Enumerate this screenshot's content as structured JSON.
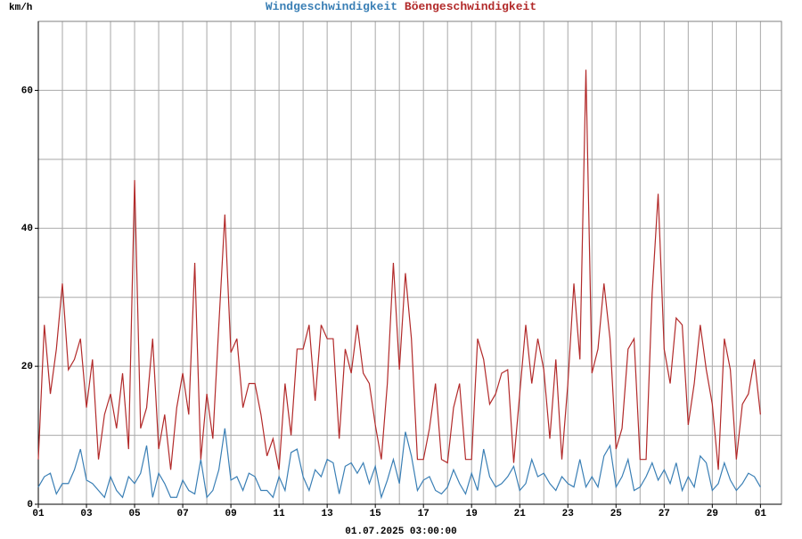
{
  "chart_data": {
    "type": "line",
    "y_unit": "km/h",
    "caption": "01.07.2025 03:00:00",
    "x": [
      "2025-06-01T00:00",
      "2025-06-01T06:00",
      "2025-06-01T12:00",
      "2025-06-01T18:00",
      "2025-06-02T00:00",
      "2025-06-02T06:00",
      "2025-06-02T12:00",
      "2025-06-02T18:00",
      "2025-06-03T00:00",
      "2025-06-03T06:00",
      "2025-06-03T12:00",
      "2025-06-03T18:00",
      "2025-06-04T00:00",
      "2025-06-04T06:00",
      "2025-06-04T12:00",
      "2025-06-04T18:00",
      "2025-06-05T00:00",
      "2025-06-05T06:00",
      "2025-06-05T12:00",
      "2025-06-05T18:00",
      "2025-06-06T00:00",
      "2025-06-06T06:00",
      "2025-06-06T12:00",
      "2025-06-06T18:00",
      "2025-06-07T00:00",
      "2025-06-07T06:00",
      "2025-06-07T12:00",
      "2025-06-07T18:00",
      "2025-06-08T00:00",
      "2025-06-08T06:00",
      "2025-06-08T12:00",
      "2025-06-08T18:00",
      "2025-06-09T00:00",
      "2025-06-09T06:00",
      "2025-06-09T12:00",
      "2025-06-09T18:00",
      "2025-06-10T00:00",
      "2025-06-10T06:00",
      "2025-06-10T12:00",
      "2025-06-10T18:00",
      "2025-06-11T00:00",
      "2025-06-11T06:00",
      "2025-06-11T12:00",
      "2025-06-11T18:00",
      "2025-06-12T00:00",
      "2025-06-12T06:00",
      "2025-06-12T12:00",
      "2025-06-12T18:00",
      "2025-06-13T00:00",
      "2025-06-13T06:00",
      "2025-06-13T12:00",
      "2025-06-13T18:00",
      "2025-06-14T00:00",
      "2025-06-14T06:00",
      "2025-06-14T12:00",
      "2025-06-14T18:00",
      "2025-06-15T00:00",
      "2025-06-15T06:00",
      "2025-06-15T12:00",
      "2025-06-15T18:00",
      "2025-06-16T00:00",
      "2025-06-16T06:00",
      "2025-06-16T12:00",
      "2025-06-16T18:00",
      "2025-06-17T00:00",
      "2025-06-17T06:00",
      "2025-06-17T12:00",
      "2025-06-17T18:00",
      "2025-06-18T00:00",
      "2025-06-18T06:00",
      "2025-06-18T12:00",
      "2025-06-18T18:00",
      "2025-06-19T00:00",
      "2025-06-19T06:00",
      "2025-06-19T12:00",
      "2025-06-19T18:00",
      "2025-06-20T00:00",
      "2025-06-20T06:00",
      "2025-06-20T12:00",
      "2025-06-20T18:00",
      "2025-06-21T00:00",
      "2025-06-21T06:00",
      "2025-06-21T12:00",
      "2025-06-21T18:00",
      "2025-06-22T00:00",
      "2025-06-22T06:00",
      "2025-06-22T12:00",
      "2025-06-22T18:00",
      "2025-06-23T00:00",
      "2025-06-23T06:00",
      "2025-06-23T12:00",
      "2025-06-23T18:00",
      "2025-06-24T00:00",
      "2025-06-24T06:00",
      "2025-06-24T12:00",
      "2025-06-24T18:00",
      "2025-06-25T00:00",
      "2025-06-25T06:00",
      "2025-06-25T12:00",
      "2025-06-25T18:00",
      "2025-06-26T00:00",
      "2025-06-26T06:00",
      "2025-06-26T12:00",
      "2025-06-26T18:00",
      "2025-06-27T00:00",
      "2025-06-27T06:00",
      "2025-06-27T12:00",
      "2025-06-27T18:00",
      "2025-06-28T00:00",
      "2025-06-28T06:00",
      "2025-06-28T12:00",
      "2025-06-28T18:00",
      "2025-06-29T00:00",
      "2025-06-29T06:00",
      "2025-06-29T12:00",
      "2025-06-29T18:00",
      "2025-06-30T00:00",
      "2025-06-30T06:00",
      "2025-06-30T12:00",
      "2025-06-30T18:00",
      "2025-07-01T00:00"
    ],
    "series": [
      {
        "name": "Windgeschwindigkeit",
        "color": "#3a7fb5",
        "values": [
          2.5,
          4,
          4.5,
          1.5,
          3,
          3,
          5,
          8,
          3.5,
          3,
          2,
          1,
          4,
          2,
          1,
          4,
          3,
          4.5,
          8.5,
          1,
          4.5,
          3,
          1,
          1,
          3.5,
          2,
          1.5,
          6.5,
          1,
          2,
          5,
          11,
          3.5,
          4,
          2,
          4.5,
          4,
          2,
          2,
          1,
          4,
          2,
          7.5,
          8,
          4,
          2,
          5,
          4,
          6.5,
          6,
          1.5,
          5.5,
          6,
          4.5,
          6,
          3,
          5.5,
          1,
          3.5,
          6.5,
          3,
          10.5,
          7,
          2,
          3.5,
          4,
          2,
          1.5,
          2.5,
          5,
          3,
          1.5,
          4.5,
          2,
          8,
          4,
          2.5,
          3,
          4,
          5.5,
          2,
          3,
          6.5,
          4,
          4.5,
          3,
          2,
          4,
          3,
          2.5,
          6.5,
          2.5,
          4,
          2.5,
          7,
          8.5,
          2.5,
          4,
          6.5,
          2,
          2.5,
          4,
          6,
          3.5,
          5,
          3,
          6,
          2,
          4,
          2.5,
          7,
          6,
          2,
          3,
          6,
          3.5,
          2,
          3,
          4.5,
          4,
          2.5
        ]
      },
      {
        "name": "Böengeschwindigkeit",
        "color": "#b22a2a",
        "values": [
          6.5,
          26,
          16,
          22.5,
          32,
          19.5,
          21,
          24,
          14,
          21,
          6.5,
          13,
          16,
          11,
          19,
          8,
          47,
          11,
          14,
          24,
          8,
          13,
          5,
          14,
          19,
          13,
          35,
          6.5,
          16,
          9.5,
          26,
          42,
          22,
          24,
          14,
          17.5,
          17.5,
          13,
          7,
          9.5,
          5,
          17.5,
          10,
          22.5,
          22.5,
          26,
          15,
          26,
          24,
          24,
          9.5,
          22.5,
          19,
          26,
          19,
          17.5,
          11.5,
          6.5,
          17.5,
          35,
          19.5,
          33.5,
          24,
          6.5,
          6.5,
          11,
          17.5,
          6.5,
          6,
          14,
          17.5,
          6.5,
          6.5,
          24,
          21,
          14.5,
          16,
          19,
          19.5,
          6,
          16,
          26,
          17.5,
          24,
          19.5,
          9.5,
          21,
          6.5,
          17.5,
          32,
          21,
          63,
          19,
          22.5,
          32,
          24,
          8,
          11,
          22.5,
          24,
          6.5,
          6.5,
          30.5,
          45,
          22.5,
          17.5,
          27,
          26,
          11.5,
          17.5,
          26,
          19.5,
          14.5,
          5,
          24,
          19.5,
          6.5,
          14.5,
          16,
          21,
          13
        ]
      }
    ],
    "xlim": [
      "2025-06-01T00:00",
      "2025-07-01T21:00"
    ],
    "xticks": [
      {
        "value": "2025-06-01",
        "label": "01"
      },
      {
        "value": "2025-06-03",
        "label": "03"
      },
      {
        "value": "2025-06-05",
        "label": "05"
      },
      {
        "value": "2025-06-07",
        "label": "07"
      },
      {
        "value": "2025-06-09",
        "label": "09"
      },
      {
        "value": "2025-06-11",
        "label": "11"
      },
      {
        "value": "2025-06-13",
        "label": "13"
      },
      {
        "value": "2025-06-15",
        "label": "15"
      },
      {
        "value": "2025-06-17",
        "label": "17"
      },
      {
        "value": "2025-06-19",
        "label": "19"
      },
      {
        "value": "2025-06-21",
        "label": "21"
      },
      {
        "value": "2025-06-23",
        "label": "23"
      },
      {
        "value": "2025-06-25",
        "label": "25"
      },
      {
        "value": "2025-06-27",
        "label": "27"
      },
      {
        "value": "2025-06-29",
        "label": "29"
      },
      {
        "value": "2025-07-01",
        "label": "01"
      }
    ],
    "minor_xticks": [
      "2025-06-02",
      "2025-06-04",
      "2025-06-06",
      "2025-06-08",
      "2025-06-10",
      "2025-06-12",
      "2025-06-14",
      "2025-06-16",
      "2025-06-18",
      "2025-06-20",
      "2025-06-22",
      "2025-06-24",
      "2025-06-26",
      "2025-06-28",
      "2025-06-30"
    ],
    "ylim": [
      0,
      70
    ],
    "yticks": [
      0,
      20,
      40,
      60
    ],
    "minor_yticks": [
      10,
      30,
      50,
      70
    ],
    "grid": true
  }
}
